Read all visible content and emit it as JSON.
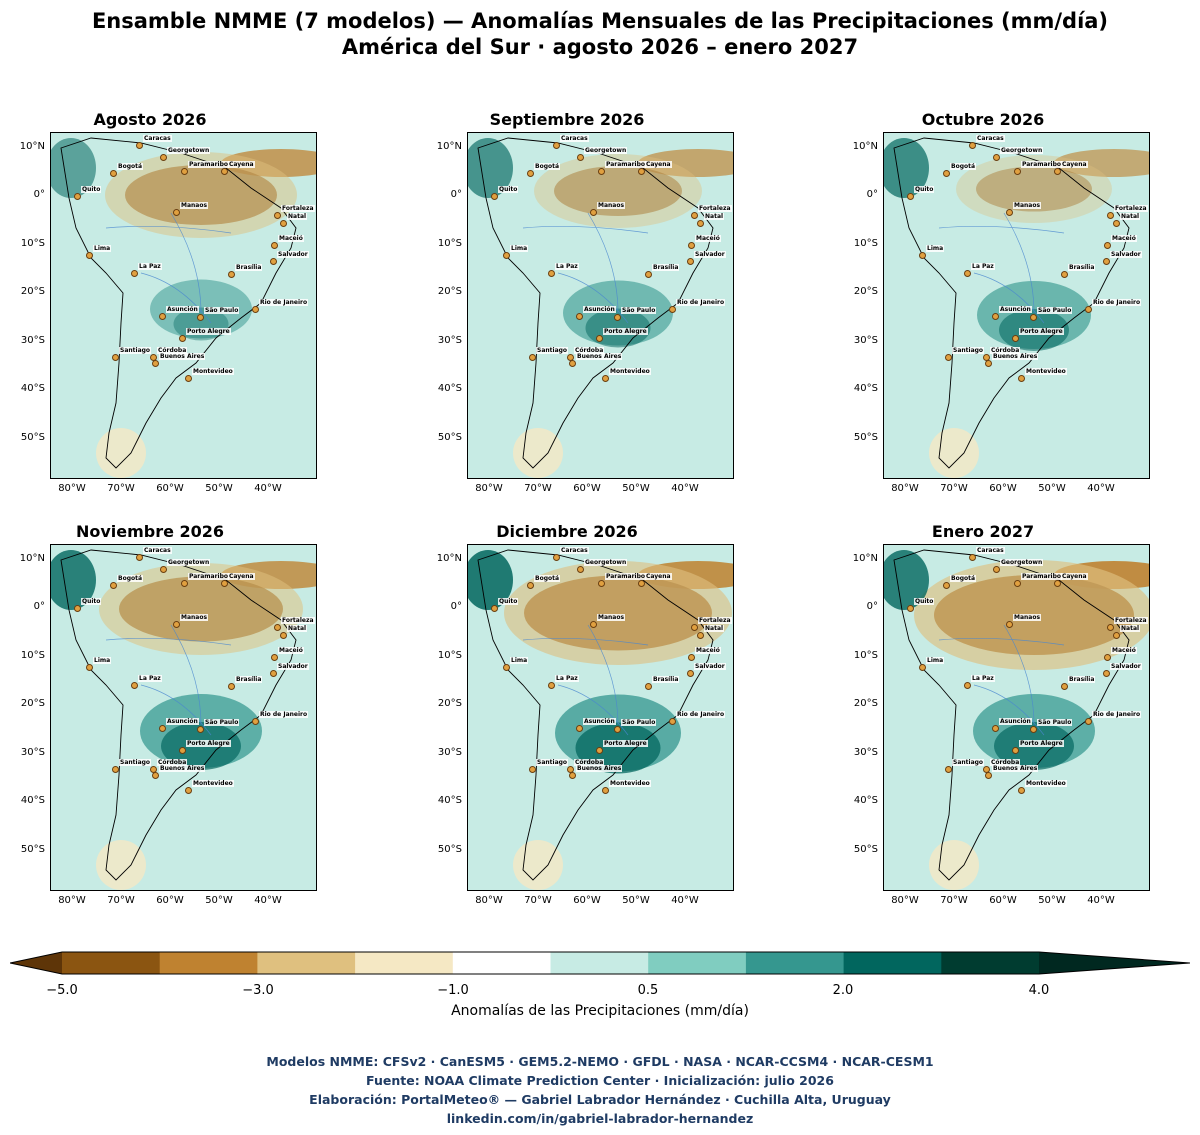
{
  "title_line1": "Ensamble NMME (7 modelos) — Anomalías Mensuales de las Precipitaciones (mm/día)",
  "title_line2": "América del Sur · agosto 2026 – enero 2027",
  "panels": [
    {
      "title": "Agosto 2026",
      "anom_strength": 0.3,
      "dry_north": 0.6
    },
    {
      "title": "Septiembre 2026",
      "anom_strength": 0.5,
      "dry_north": 0.4
    },
    {
      "title": "Octubre 2026",
      "anom_strength": 0.6,
      "dry_north": 0.3
    },
    {
      "title": "Noviembre 2026",
      "anom_strength": 0.8,
      "dry_north": 0.7
    },
    {
      "title": "Diciembre 2026",
      "anom_strength": 0.9,
      "dry_north": 0.9
    },
    {
      "title": "Enero 2027",
      "anom_strength": 0.8,
      "dry_north": 1.0
    }
  ],
  "lat_ticks": [
    "10°N",
    "0°",
    "10°S",
    "20°S",
    "30°S",
    "40°S",
    "50°S"
  ],
  "lon_ticks": [
    "80°W",
    "70°W",
    "60°W",
    "50°W",
    "40°W"
  ],
  "cities": [
    "Caracas",
    "Georgetown",
    "Bogotá",
    "Paramaribo",
    "Cayena",
    "Quito",
    "Manaos",
    "Fortaleza",
    "Natal",
    "Maceió",
    "Lima",
    "Salvador",
    "La Paz",
    "Brasília",
    "Rio de Janeiro",
    "Asunción",
    "São Paulo",
    "Porto Alegre",
    "Santiago",
    "Córdoba",
    "Buenos Aires",
    "Montevideo"
  ],
  "colorbar": {
    "colors": [
      "#5e3508",
      "#8b5511",
      "#bf8230",
      "#dfc07f",
      "#f5e8c4",
      "#ffffff",
      "#c7ebe4",
      "#80cdc0",
      "#35978f",
      "#01665e",
      "#003c30",
      "#002820"
    ],
    "ticks": [
      "−5.0",
      "−3.0",
      "−1.0",
      "0.5",
      "2.0",
      "4.0"
    ],
    "label": "Anomalías de las Precipitaciones (mm/día)"
  },
  "footer": {
    "line1": "Modelos NMME: CFSv2 · CanESM5 · GEM5.2-NEMO · GFDL · NASA · NCAR-CCSM4 · NCAR-CESM1",
    "line2": "Fuente: NOAA Climate Prediction Center  ·  Inicialización: julio 2026",
    "line3": "Elaboración: PortalMeteo® — Gabriel Labrador Hernández · Cuchilla Alta, Uruguay",
    "line4": "linkedin.com/in/gabriel-labrador-hernandez"
  }
}
